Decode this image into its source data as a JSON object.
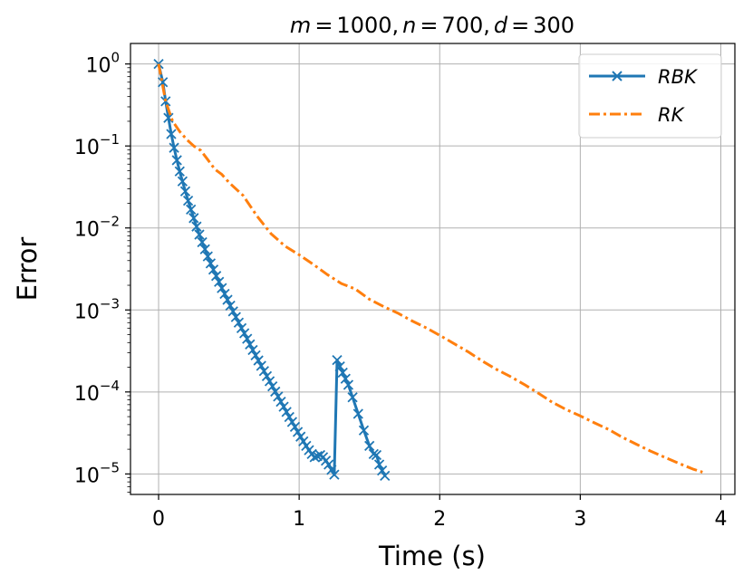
{
  "chart_data": {
    "type": "line",
    "title_parts": {
      "m_label": "m",
      "m_value": "1000",
      "n_label": "n",
      "n_value": "700",
      "d_label": "d",
      "d_value": "300",
      "equals": "=",
      "separator": ","
    },
    "xlabel": "Time (s)",
    "ylabel": "Error",
    "xlim": [
      -0.2,
      4.1
    ],
    "ylim_log10": [
      -5.25,
      0.25
    ],
    "y_scale": "log",
    "x_ticks": [
      0,
      1,
      2,
      3,
      4
    ],
    "x_tick_labels": [
      "0",
      "1",
      "2",
      "3",
      "4"
    ],
    "y_ticks_exp": [
      0,
      -1,
      -2,
      -3,
      -4,
      -5
    ],
    "y_tick_base": "10",
    "y_tick_exponents": [
      "0",
      "−1",
      "−2",
      "−3",
      "−4",
      "−5"
    ],
    "grid": true,
    "legend_position": "top-right",
    "series": [
      {
        "name": "RBK",
        "color": "#1f77b4",
        "line_style": "solid",
        "marker": "x",
        "x": [
          0.0,
          0.03,
          0.05,
          0.07,
          0.09,
          0.11,
          0.13,
          0.15,
          0.17,
          0.19,
          0.21,
          0.23,
          0.25,
          0.27,
          0.29,
          0.31,
          0.33,
          0.35,
          0.37,
          0.39,
          0.41,
          0.43,
          0.45,
          0.47,
          0.49,
          0.51,
          0.53,
          0.55,
          0.57,
          0.59,
          0.61,
          0.63,
          0.65,
          0.67,
          0.69,
          0.71,
          0.73,
          0.75,
          0.77,
          0.79,
          0.81,
          0.83,
          0.85,
          0.87,
          0.89,
          0.91,
          0.93,
          0.95,
          0.97,
          0.99,
          1.01,
          1.03,
          1.05,
          1.07,
          1.09,
          1.11,
          1.13,
          1.15,
          1.17,
          1.19,
          1.21,
          1.23,
          1.25,
          1.27,
          1.29,
          1.31,
          1.33,
          1.35,
          1.38,
          1.42,
          1.46,
          1.5,
          1.53,
          1.55,
          1.57,
          1.59,
          1.61
        ],
        "y": [
          1.0,
          0.6,
          0.35,
          0.22,
          0.14,
          0.095,
          0.067,
          0.049,
          0.037,
          0.028,
          0.0215,
          0.0168,
          0.0132,
          0.0104,
          0.0083,
          0.0067,
          0.0055,
          0.0045,
          0.0037,
          0.0031,
          0.0026,
          0.0022,
          0.00185,
          0.00157,
          0.00133,
          0.00113,
          0.00096,
          0.00082,
          0.0007,
          0.0006,
          0.00052,
          0.000445,
          0.00038,
          0.000325,
          0.00028,
          0.000242,
          0.000208,
          0.00018,
          0.000156,
          0.000135,
          0.000117,
          0.000101,
          8.8e-05,
          7.6e-05,
          6.6e-05,
          5.7e-05,
          4.95e-05,
          4.3e-05,
          3.75e-05,
          3.25e-05,
          2.85e-05,
          2.5e-05,
          2.2e-05,
          1.95e-05,
          1.75e-05,
          1.6e-05,
          1.65e-05,
          1.7e-05,
          1.6e-05,
          1.45e-05,
          1.3e-05,
          1.12e-05,
          9.8e-06,
          0.000245,
          0.000205,
          0.000172,
          0.000145,
          0.000122,
          8.6e-05,
          5.4e-05,
          3.4e-05,
          2.2e-05,
          1.75e-05,
          1.7e-05,
          1.3e-05,
          1.1e-05,
          9.5e-06
        ]
      },
      {
        "name": "RK",
        "color": "#ff7f0e",
        "line_style": "dashdot",
        "marker": "none",
        "x": [
          0.0,
          0.05,
          0.1,
          0.15,
          0.2,
          0.25,
          0.3,
          0.35,
          0.4,
          0.45,
          0.5,
          0.6,
          0.7,
          0.8,
          0.9,
          1.0,
          1.1,
          1.2,
          1.3,
          1.4,
          1.5,
          1.6,
          1.7,
          1.8,
          1.9,
          2.0,
          2.1,
          2.2,
          2.3,
          2.4,
          2.5,
          2.6,
          2.7,
          2.8,
          2.9,
          3.0,
          3.1,
          3.2,
          3.3,
          3.4,
          3.5,
          3.6,
          3.7,
          3.8,
          3.87
        ],
        "y": [
          1.0,
          0.35,
          0.2,
          0.15,
          0.12,
          0.1,
          0.088,
          0.068,
          0.052,
          0.045,
          0.036,
          0.025,
          0.014,
          0.0085,
          0.006,
          0.0047,
          0.0036,
          0.0027,
          0.0021,
          0.0018,
          0.00135,
          0.0011,
          0.00092,
          0.00074,
          0.00061,
          0.00049,
          0.00039,
          0.00031,
          0.00024,
          0.00019,
          0.000155,
          0.000124,
          9.7e-05,
          7.5e-05,
          6.1e-05,
          5.1e-05,
          4.2e-05,
          3.5e-05,
          2.8e-05,
          2.3e-05,
          1.9e-05,
          1.6e-05,
          1.35e-05,
          1.15e-05,
          1.05e-05
        ]
      }
    ]
  }
}
